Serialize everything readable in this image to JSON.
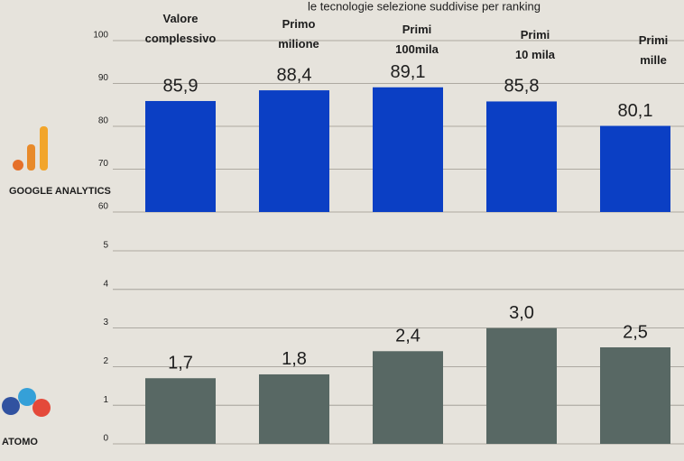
{
  "chart_data": [
    {
      "type": "bar",
      "title": "le tecnologie selezione suddivise per ranking",
      "label": "GOOGLE ANALYTICS",
      "categories": [
        "Valore complessivo",
        "Primo milione",
        "Primi 100mila",
        "Primi 10 mila",
        "Primi mille"
      ],
      "values": [
        85.9,
        88.4,
        89.1,
        85.8,
        80.1
      ],
      "value_labels": [
        "85,9",
        "88,4",
        "89,1",
        "85,8",
        "80,1"
      ],
      "color": "#0b3fc4",
      "ylim": [
        60,
        100
      ],
      "yticks": [
        60,
        70,
        80,
        90,
        100
      ],
      "grid": true
    },
    {
      "type": "bar",
      "label": "ATOMO",
      "values": [
        1.7,
        1.8,
        2.4,
        3.0,
        2.5
      ],
      "value_labels": [
        "1,7",
        "1,8",
        "2,4",
        "3,0",
        "2,5"
      ],
      "color": "#586864",
      "ylim": [
        0,
        5
      ],
      "yticks": [
        0,
        1,
        2,
        3,
        4,
        5
      ],
      "grid": true
    }
  ]
}
